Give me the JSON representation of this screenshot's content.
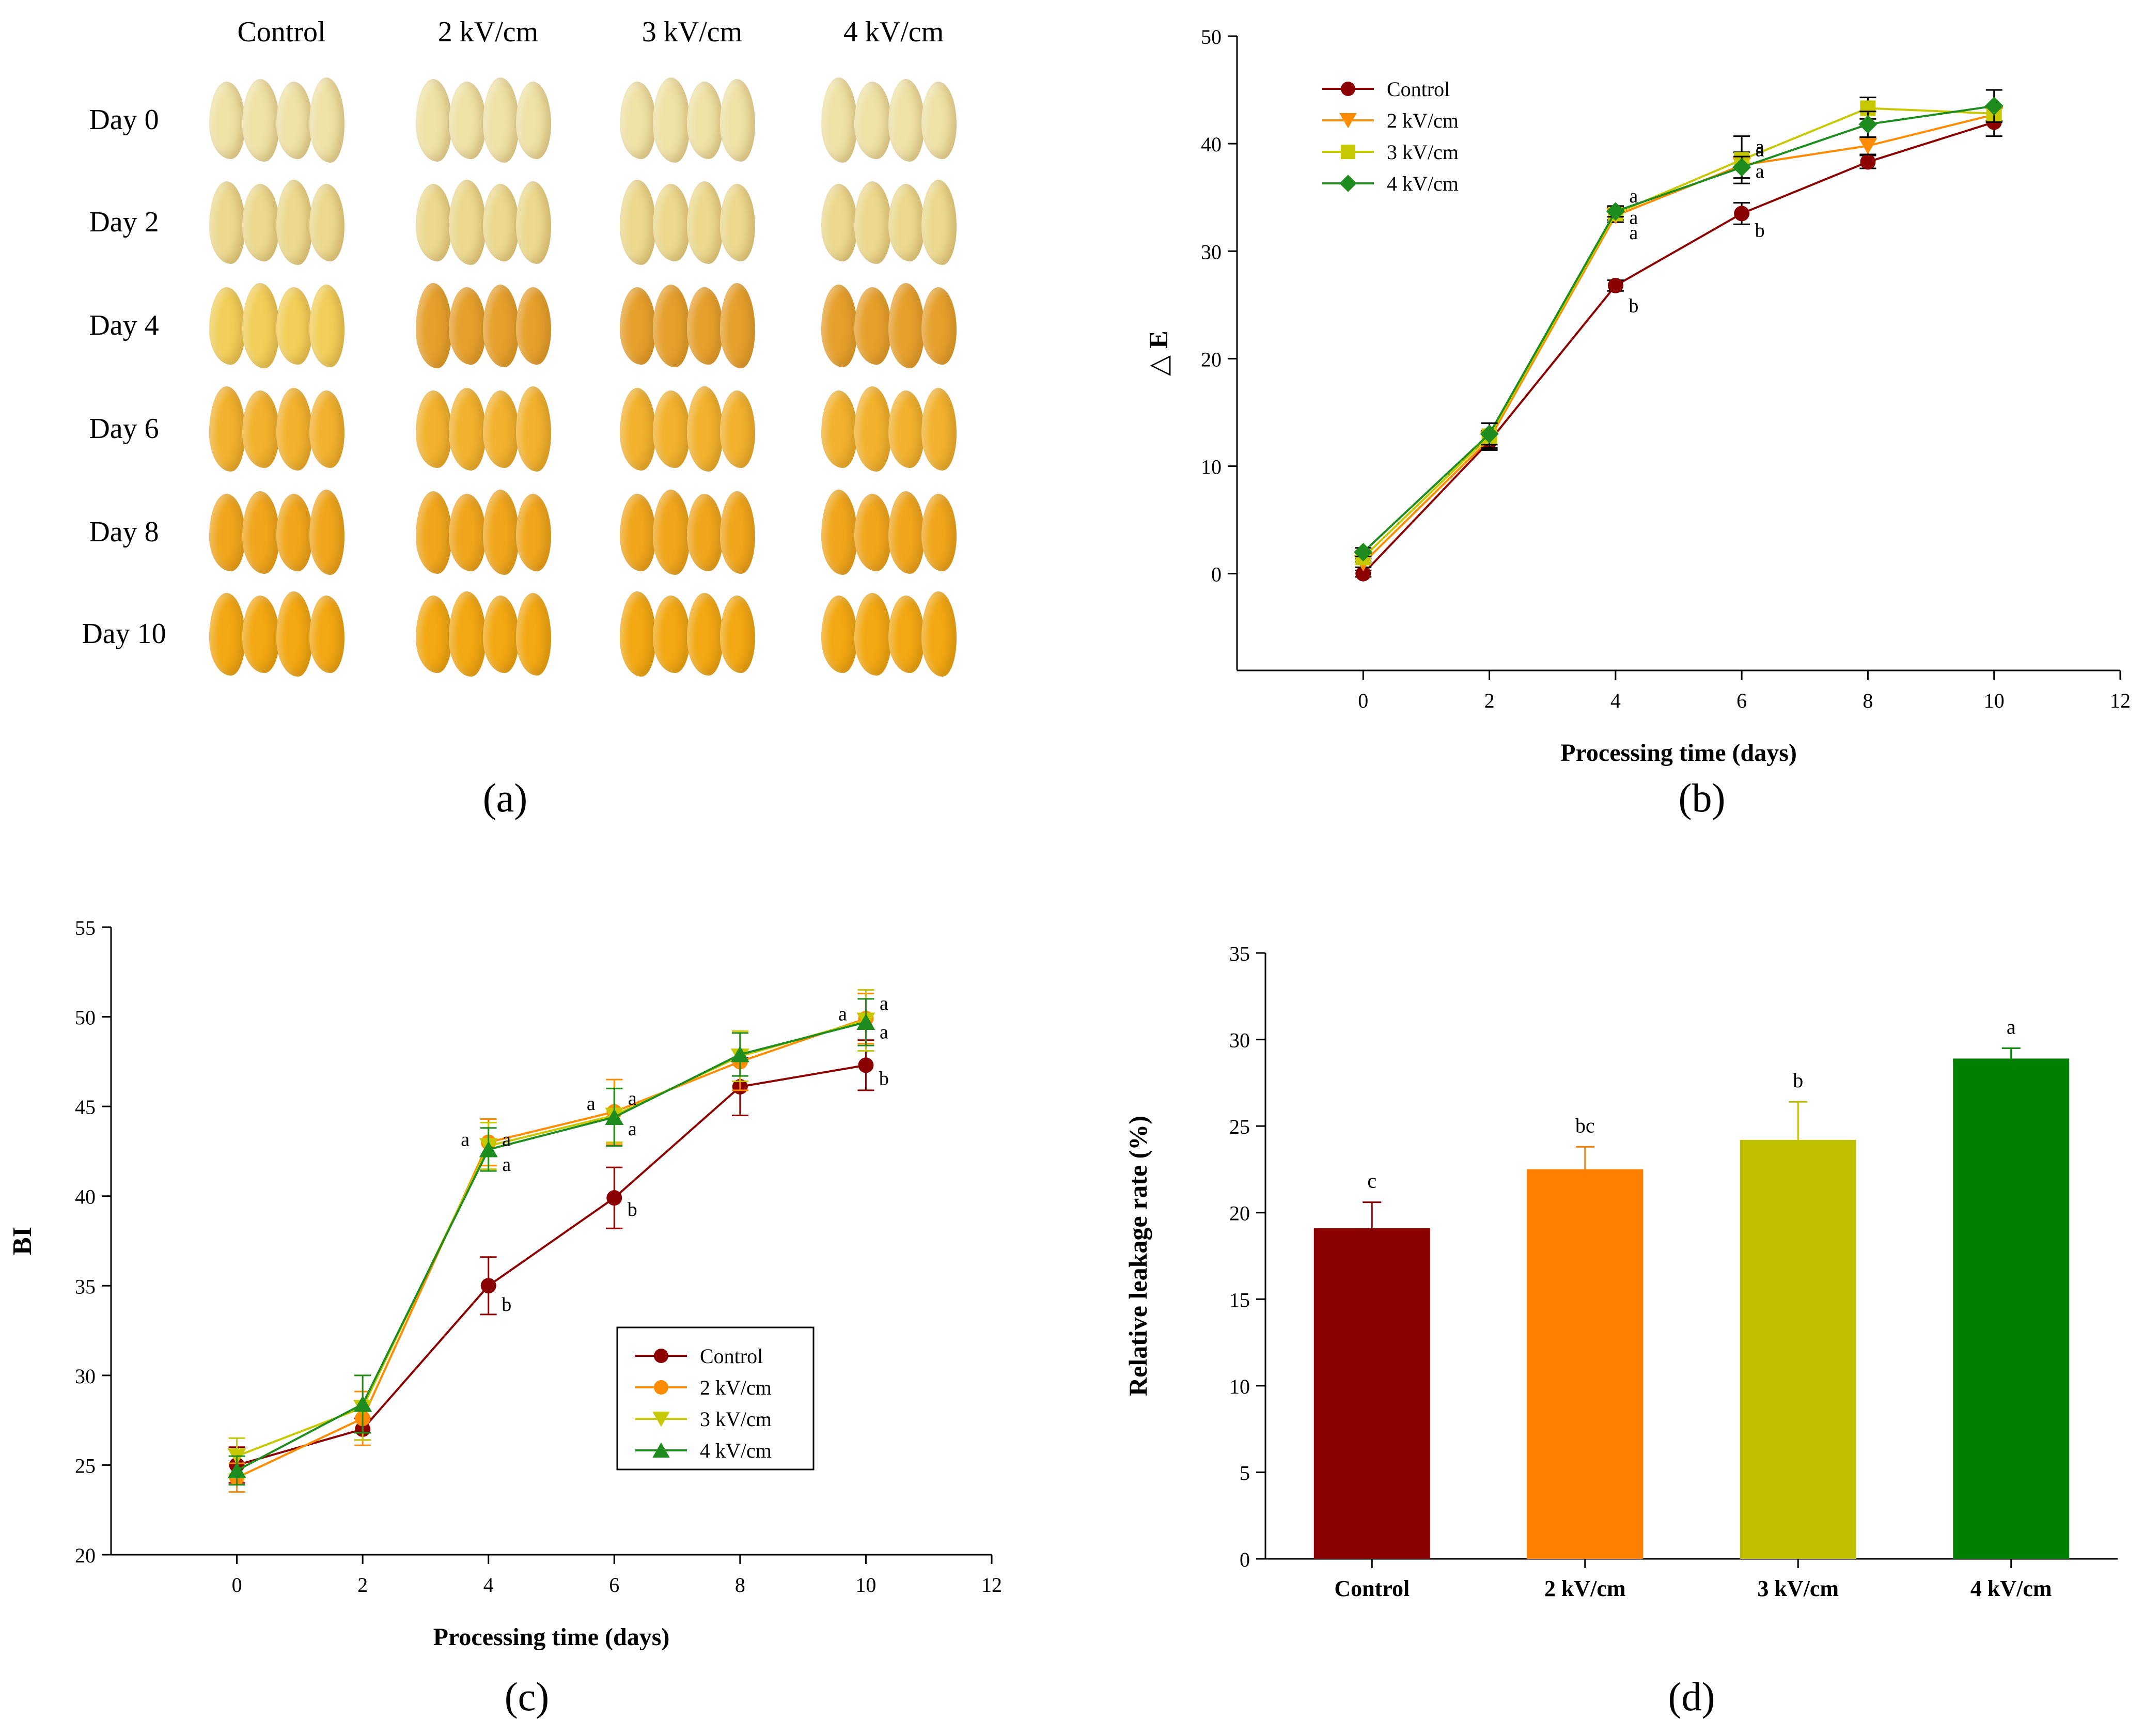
{
  "panel_a": {
    "label": "(a)",
    "columns": [
      "Control",
      "2 kV/cm",
      "3 kV/cm",
      "4 kV/cm"
    ],
    "rows": [
      "Day 0",
      "Day 2",
      "Day 4",
      "Day 6",
      "Day 8",
      "Day 10"
    ],
    "colors": {
      "day0": "#efe2a6",
      "day2": "#ecd98e",
      "day4_control": "#f2cf5a",
      "day4": "#e6a02c",
      "day6": "#f2b22e",
      "day8": "#f0a61c",
      "day10": "#f2a812"
    }
  },
  "panel_labels": {
    "b": "(b)",
    "c": "(c)",
    "d": "(d)"
  },
  "chart_data": [
    {
      "id": "b",
      "type": "line",
      "xlabel": "Processing time (days)",
      "ylabel": "△ E",
      "xlim": [
        -2,
        12
      ],
      "ylim": [
        -9,
        50
      ],
      "xticks": [
        "0",
        "2",
        "4",
        "6",
        "8",
        "10",
        "12"
      ],
      "yticks": [
        "0",
        "10",
        "20",
        "30",
        "40",
        "50"
      ],
      "legend_position": "top-left",
      "x": [
        0,
        2,
        4,
        6,
        8,
        10
      ],
      "series": [
        {
          "name": "Control",
          "color": "#8b0000",
          "marker": "circle",
          "values": [
            0,
            12.3,
            26.8,
            33.5,
            38.3,
            42.0
          ],
          "errors": [
            0.3,
            0.8,
            0.5,
            1.0,
            0.6,
            1.3
          ]
        },
        {
          "name": "2 kV/cm",
          "color": "#ff8c00",
          "marker": "triangle-down",
          "values": [
            1.0,
            12.5,
            33.3,
            38.0,
            39.8,
            42.7
          ],
          "errors": [
            0.4,
            0.8,
            0.6,
            1.2,
            0.8,
            0.6
          ]
        },
        {
          "name": "3 kV/cm",
          "color": "#c8c800",
          "marker": "square",
          "values": [
            1.5,
            12.8,
            33.5,
            38.5,
            43.3,
            42.8
          ],
          "errors": [
            0.4,
            1.2,
            0.6,
            2.2,
            1.0,
            0.7
          ]
        },
        {
          "name": "4 kV/cm",
          "color": "#1e8c1e",
          "marker": "diamond",
          "values": [
            2.0,
            13.0,
            33.7,
            37.8,
            41.8,
            43.5
          ],
          "errors": [
            0.4,
            1.0,
            0.5,
            1.0,
            1.2,
            1.5
          ]
        }
      ],
      "annotations": [
        {
          "x": 4,
          "y": 35.2,
          "text": "a"
        },
        {
          "x": 4,
          "y": 33.2,
          "text": "a"
        },
        {
          "x": 4,
          "y": 31.8,
          "text": "a"
        },
        {
          "x": 4,
          "y": 25.0,
          "text": "b"
        },
        {
          "x": 6,
          "y": 39.5,
          "text": "a"
        },
        {
          "x": 6,
          "y": 39.8,
          "text": "a"
        },
        {
          "x": 6,
          "y": 37.5,
          "text": "a"
        },
        {
          "x": 6,
          "y": 32.0,
          "text": "b"
        }
      ]
    },
    {
      "id": "c",
      "type": "line",
      "xlabel": "Processing time (days)",
      "ylabel": "BI",
      "xlim": [
        -2,
        12
      ],
      "ylim": [
        20,
        55
      ],
      "xticks": [
        "0",
        "2",
        "4",
        "6",
        "8",
        "10",
        "12"
      ],
      "yticks": [
        "20",
        "25",
        "30",
        "35",
        "40",
        "45",
        "50",
        "55"
      ],
      "legend_position": "center-right",
      "x": [
        0,
        2,
        4,
        6,
        8,
        10
      ],
      "series": [
        {
          "name": "Control",
          "color": "#8b0000",
          "marker": "circle",
          "values": [
            25.0,
            27.0,
            35.0,
            39.9,
            46.1,
            47.3
          ],
          "errors": [
            1.0,
            0.6,
            1.6,
            1.7,
            1.6,
            1.4
          ]
        },
        {
          "name": "2 kV/cm",
          "color": "#ff8c00",
          "marker": "circle",
          "values": [
            24.3,
            27.6,
            43.0,
            44.7,
            47.5,
            49.9
          ],
          "errors": [
            0.8,
            1.5,
            1.3,
            1.8,
            1.6,
            1.4
          ]
        },
        {
          "name": "3 kV/cm",
          "color": "#c8c800",
          "marker": "triangle-down",
          "values": [
            25.5,
            28.2,
            42.8,
            44.5,
            47.8,
            49.8
          ],
          "errors": [
            1.0,
            1.8,
            1.3,
            1.5,
            1.4,
            1.7
          ]
        },
        {
          "name": "4 kV/cm",
          "color": "#1e8c1e",
          "marker": "triangle-up",
          "values": [
            24.7,
            28.4,
            42.6,
            44.4,
            47.9,
            49.7
          ],
          "errors": [
            0.8,
            1.6,
            1.2,
            1.6,
            1.2,
            1.3
          ]
        }
      ],
      "annotations": [
        {
          "x": 4,
          "y": 43.2,
          "text": "a",
          "side": "left"
        },
        {
          "x": 4,
          "y": 43.2,
          "text": "a",
          "side": "right"
        },
        {
          "x": 4,
          "y": 41.8,
          "text": "a",
          "side": "right"
        },
        {
          "x": 4,
          "y": 34.0,
          "text": "b",
          "side": "right"
        },
        {
          "x": 6,
          "y": 45.2,
          "text": "a",
          "side": "left"
        },
        {
          "x": 6,
          "y": 45.5,
          "text": "a",
          "side": "right"
        },
        {
          "x": 6,
          "y": 43.8,
          "text": "a",
          "side": "right"
        },
        {
          "x": 6,
          "y": 39.3,
          "text": "b",
          "side": "right"
        },
        {
          "x": 10,
          "y": 50.2,
          "text": "a",
          "side": "left"
        },
        {
          "x": 10,
          "y": 50.8,
          "text": "a",
          "side": "right"
        },
        {
          "x": 10,
          "y": 49.2,
          "text": "a",
          "side": "right"
        },
        {
          "x": 10,
          "y": 46.6,
          "text": "b",
          "side": "right"
        }
      ]
    },
    {
      "id": "d",
      "type": "bar",
      "xlabel": "",
      "ylabel": "Relative leakage rate (%)",
      "ylim": [
        0,
        35
      ],
      "yticks": [
        "0",
        "5",
        "10",
        "15",
        "20",
        "25",
        "30",
        "35"
      ],
      "categories": [
        "Control",
        "2 kV/cm",
        "3 kV/cm",
        "4 kV/cm"
      ],
      "values": [
        19.1,
        22.5,
        24.2,
        28.9
      ],
      "errors": [
        1.5,
        1.3,
        2.2,
        0.6
      ],
      "letters": [
        "c",
        "bc",
        "b",
        "a"
      ],
      "colors": [
        "#8b0000",
        "#ff8000",
        "#c0c000",
        "#008000"
      ]
    }
  ]
}
